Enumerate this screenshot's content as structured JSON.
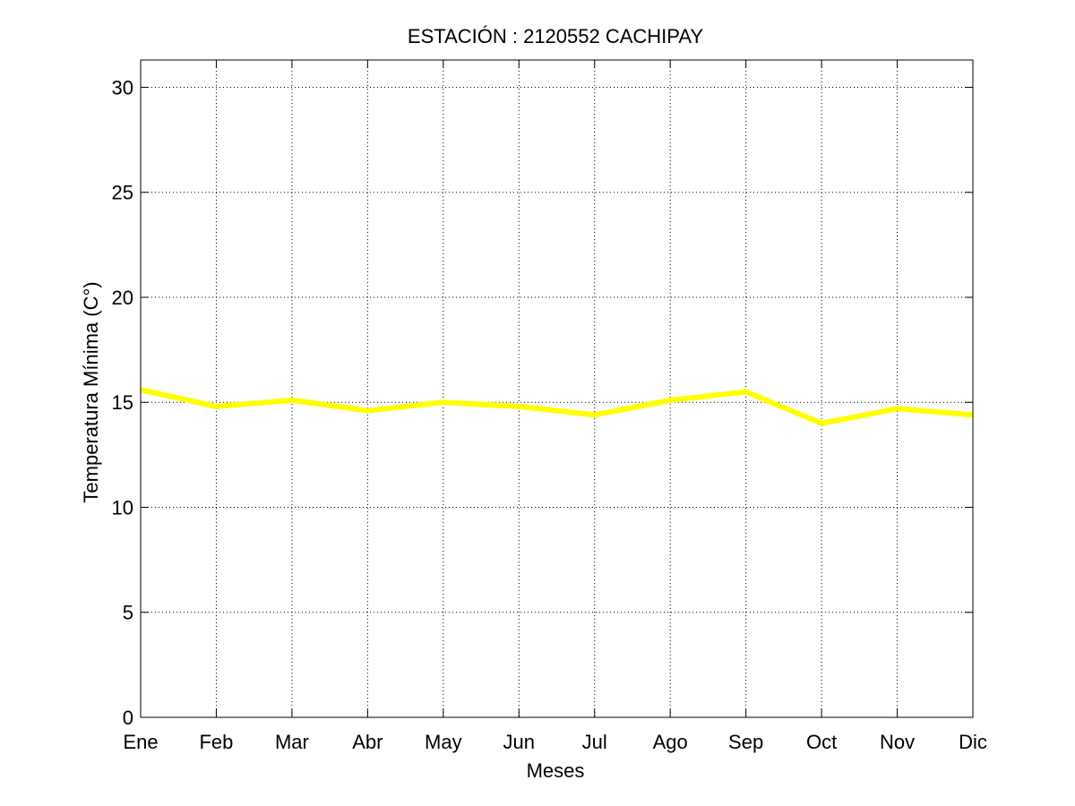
{
  "chart_data": {
    "type": "line",
    "title": "ESTACIÓN : 2120552  CACHIPAY",
    "xlabel": "Meses",
    "ylabel": "Temperatura Mínima (C°)",
    "categories": [
      "Ene",
      "Feb",
      "Mar",
      "Abr",
      "May",
      "Jun",
      "Jul",
      "Ago",
      "Sep",
      "Oct",
      "Nov",
      "Dic"
    ],
    "yticks": [
      0,
      5,
      10,
      15,
      20,
      25,
      30
    ],
    "ylim": [
      0,
      31.3
    ],
    "grid": true,
    "series": [
      {
        "values": [
          15.6,
          14.8,
          15.1,
          14.6,
          15.0,
          14.8,
          14.4,
          15.1,
          15.5,
          14.0,
          14.7,
          14.4
        ],
        "color": "#ffff00"
      }
    ]
  }
}
